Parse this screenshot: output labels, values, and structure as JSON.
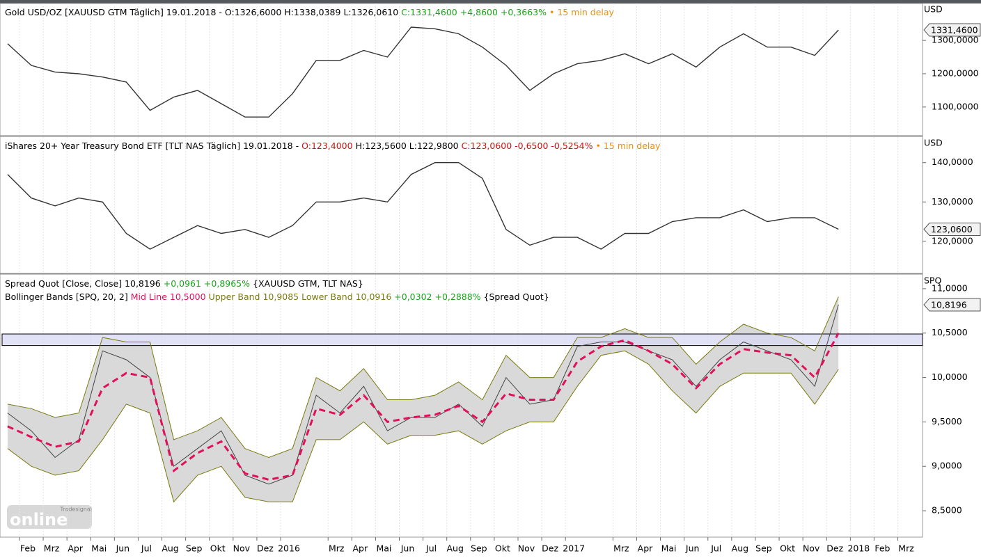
{
  "chart_data": [
    {
      "type": "line",
      "headers": [
        [
          {
            "text": "Gold USD/OZ [XAUUSD GTM Täglich] 19.01.2018 - O:1326,6000 H:1338,0389 L:1326,0610",
            "color": "#000000"
          },
          {
            "text": "C:1331,4600 +4,8600 +0,3663%",
            "color": "#1aa31a"
          },
          {
            "text": "• 15 min delay",
            "color": "#e8900c"
          }
        ]
      ],
      "unit": "USD",
      "last_label": "1331,4600",
      "x": [
        -0.5,
        0.5,
        1.5,
        2.5,
        3.5,
        4.5,
        5.5,
        6.5,
        7.5,
        8.5,
        9.5,
        10.5,
        11.5,
        12.5,
        13.5,
        14.5,
        15.5,
        16.5,
        17.5,
        18.5,
        19.5,
        20.5,
        21.5,
        22.5,
        23.5,
        24.5,
        25.5,
        26.5,
        27.5,
        28.5,
        29.5,
        30.5,
        31.5,
        32.5,
        33.5,
        34.5
      ],
      "series": [
        {
          "color": "#333333",
          "values": [
            1290,
            1225,
            1205,
            1200,
            1190,
            1175,
            1090,
            1130,
            1150,
            1110,
            1070,
            1070,
            1140,
            1240,
            1240,
            1270,
            1250,
            1340,
            1335,
            1320,
            1280,
            1225,
            1150,
            1200,
            1230,
            1240,
            1260,
            1230,
            1260,
            1220,
            1280,
            1320,
            1280,
            1280,
            1255,
            1331.46
          ]
        }
      ],
      "xlim": [
        -0.82,
        38.04
      ],
      "ylim": [
        1016,
        1411
      ],
      "yticks": [
        {
          "value": 1100,
          "label": "1100,0000"
        },
        {
          "value": 1200,
          "label": "1200,0000"
        },
        {
          "value": 1300,
          "label": "1300,0000"
        }
      ]
    },
    {
      "type": "line",
      "headers": [
        [
          {
            "text": "iShares 20+ Year Treasury Bond ETF [TLT NAS Täglich] 19.01.2018 -",
            "color": "#000000"
          },
          {
            "text": "O:123,4000",
            "color": "#d01010"
          },
          {
            "text": "H:123,5600 L:122,9800",
            "color": "#000000"
          },
          {
            "text": "C:123,0600 -0,6500 -0,5254%",
            "color": "#d01010"
          },
          {
            "text": "• 15 min delay",
            "color": "#e8900c"
          }
        ]
      ],
      "unit": "USD",
      "last_label": "123,0600",
      "x": [
        -0.5,
        0.5,
        1.5,
        2.5,
        3.5,
        4.5,
        5.5,
        6.5,
        7.5,
        8.5,
        9.5,
        10.5,
        11.5,
        12.5,
        13.5,
        14.5,
        15.5,
        16.5,
        17.5,
        18.5,
        19.5,
        20.5,
        21.5,
        22.5,
        23.5,
        24.5,
        25.5,
        26.5,
        27.5,
        28.5,
        29.5,
        30.5,
        31.5,
        32.5,
        33.5,
        34.5
      ],
      "series": [
        {
          "color": "#333333",
          "values": [
            137,
            131,
            129,
            131,
            130,
            122,
            118,
            121,
            124,
            122,
            123,
            121,
            124,
            130,
            130,
            131,
            130,
            137,
            140,
            140,
            136,
            123,
            119,
            121,
            121,
            118,
            122,
            122,
            125,
            126,
            126,
            128,
            125,
            126,
            126,
            123.06
          ]
        }
      ],
      "xlim": [
        -0.82,
        38.04
      ],
      "ylim": [
        112,
        146.5
      ],
      "yticks": [
        {
          "value": 120,
          "label": "120,0000"
        },
        {
          "value": 130,
          "label": "130,0000"
        },
        {
          "value": 140,
          "label": "140,0000"
        }
      ]
    },
    {
      "type": "bollinger",
      "headers": [
        [
          {
            "text": "Spread Quot [Close, Close] 10,8196",
            "color": "#000000"
          },
          {
            "text": "+0,0961 +0,8965%",
            "color": "#1aa31a"
          },
          {
            "text": "{XAUUSD GTM, TLT NAS}",
            "color": "#000000"
          }
        ],
        [
          {
            "text": "Bollinger Bands [SPQ, 20, 2]",
            "color": "#000000"
          },
          {
            "text": "Mid Line 10,5000",
            "color": "#e0105a"
          },
          {
            "text": "Upper Band 10,9085 Lower Band 10,0916",
            "color": "#7a7a10"
          },
          {
            "text": "+0,0302 +0,2888%",
            "color": "#1aa31a"
          },
          {
            "text": "{Spread Quot}",
            "color": "#000000"
          }
        ]
      ],
      "unit": "SPQ",
      "last_label": "10,8196",
      "x": [
        -0.5,
        0.5,
        1.5,
        2.5,
        3.5,
        4.5,
        5.5,
        6.5,
        7.5,
        8.5,
        9.5,
        10.5,
        11.5,
        12.5,
        13.5,
        14.5,
        15.5,
        16.5,
        17.5,
        18.5,
        19.5,
        20.5,
        21.5,
        22.5,
        23.5,
        24.5,
        25.5,
        26.5,
        27.5,
        28.5,
        29.5,
        30.5,
        31.5,
        32.5,
        33.5,
        34.5
      ],
      "series": [
        {
          "color": "#444444",
          "values": [
            9.6,
            9.4,
            9.1,
            9.3,
            10.3,
            10.2,
            10.0,
            9.0,
            9.2,
            9.4,
            8.9,
            8.8,
            8.9,
            9.8,
            9.6,
            9.9,
            9.4,
            9.55,
            9.55,
            9.7,
            9.45,
            10.0,
            9.7,
            9.75,
            10.35,
            10.4,
            10.4,
            10.3,
            10.2,
            9.9,
            10.2,
            10.4,
            10.3,
            10.2,
            9.9,
            10.8196
          ]
        },
        {
          "color": "#e0105a",
          "values": [
            9.45,
            9.33,
            9.22,
            9.28,
            9.88,
            10.05,
            10.0,
            8.95,
            9.15,
            9.28,
            8.92,
            8.85,
            8.9,
            9.65,
            9.58,
            9.8,
            9.5,
            9.55,
            9.58,
            9.68,
            9.5,
            9.82,
            9.75,
            9.75,
            10.18,
            10.35,
            10.42,
            10.3,
            10.15,
            9.88,
            10.15,
            10.32,
            10.28,
            10.25,
            10.0,
            10.5
          ]
        },
        {
          "color": "#7a7a10",
          "values": [
            9.7,
            9.65,
            9.55,
            9.6,
            10.45,
            10.4,
            10.4,
            9.3,
            9.4,
            9.55,
            9.2,
            9.1,
            9.2,
            10.0,
            9.85,
            10.1,
            9.75,
            9.75,
            9.8,
            9.95,
            9.75,
            10.25,
            10.0,
            10.0,
            10.45,
            10.45,
            10.55,
            10.45,
            10.45,
            10.15,
            10.4,
            10.6,
            10.5,
            10.45,
            10.3,
            10.9085
          ]
        },
        {
          "color": "#7a7a10",
          "values": [
            9.2,
            9.0,
            8.9,
            8.95,
            9.3,
            9.7,
            9.6,
            8.6,
            8.9,
            9.0,
            8.65,
            8.6,
            8.6,
            9.3,
            9.3,
            9.5,
            9.25,
            9.35,
            9.35,
            9.4,
            9.25,
            9.4,
            9.5,
            9.5,
            9.9,
            10.25,
            10.3,
            10.15,
            9.85,
            9.6,
            9.9,
            10.05,
            10.05,
            10.05,
            9.7,
            10.0916
          ]
        }
      ],
      "band_fill": "#d9d9d9",
      "highlight_band": [
        10.36,
        10.49
      ],
      "xlim": [
        -0.82,
        38.04
      ],
      "ylim": [
        8.203,
        11.156
      ],
      "yticks": [
        {
          "value": 8.5,
          "label": "8,5000"
        },
        {
          "value": 9,
          "label": "9,0000"
        },
        {
          "value": 9.5,
          "label": "9,5000"
        },
        {
          "value": 10,
          "label": "10,0000"
        },
        {
          "value": 10.5,
          "label": "10,5000"
        },
        {
          "value": 11,
          "label": "11,0000"
        }
      ],
      "xticks": [
        {
          "value": 0,
          "label": "Feb"
        },
        {
          "value": 1,
          "label": "Mrz"
        },
        {
          "value": 2,
          "label": "Apr"
        },
        {
          "value": 3,
          "label": "Mai"
        },
        {
          "value": 4,
          "label": "Jun"
        },
        {
          "value": 5,
          "label": "Jul"
        },
        {
          "value": 6,
          "label": "Aug"
        },
        {
          "value": 7,
          "label": "Sep"
        },
        {
          "value": 8,
          "label": "Okt"
        },
        {
          "value": 9,
          "label": "Nov"
        },
        {
          "value": 10,
          "label": "Dez"
        },
        {
          "value": 11,
          "label": "2016"
        },
        {
          "value": 13,
          "label": "Mrz"
        },
        {
          "value": 14,
          "label": "Apr"
        },
        {
          "value": 15,
          "label": "Mai"
        },
        {
          "value": 16,
          "label": "Jun"
        },
        {
          "value": 17,
          "label": "Jul"
        },
        {
          "value": 18,
          "label": "Aug"
        },
        {
          "value": 19,
          "label": "Sep"
        },
        {
          "value": 20,
          "label": "Okt"
        },
        {
          "value": 21,
          "label": "Nov"
        },
        {
          "value": 22,
          "label": "Dez"
        },
        {
          "value": 23,
          "label": "2017"
        },
        {
          "value": 25,
          "label": "Mrz"
        },
        {
          "value": 26,
          "label": "Apr"
        },
        {
          "value": 27,
          "label": "Mai"
        },
        {
          "value": 28,
          "label": "Jun"
        },
        {
          "value": 29,
          "label": "Jul"
        },
        {
          "value": 30,
          "label": "Aug"
        },
        {
          "value": 31,
          "label": "Sep"
        },
        {
          "value": 32,
          "label": "Okt"
        },
        {
          "value": 33,
          "label": "Nov"
        },
        {
          "value": 34,
          "label": "Dez"
        },
        {
          "value": 35,
          "label": "2018"
        },
        {
          "value": 36,
          "label": "Feb"
        },
        {
          "value": 37,
          "label": "Mrz"
        }
      ]
    }
  ],
  "logo": {
    "brand": "Tradesignal",
    "product": "online"
  }
}
